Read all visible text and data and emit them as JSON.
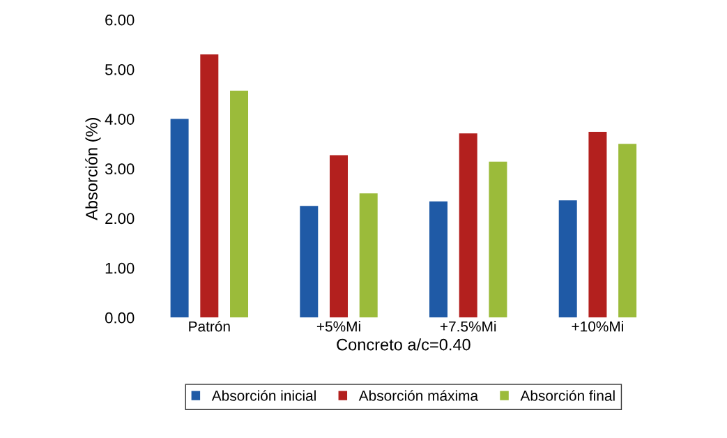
{
  "chart_data": {
    "type": "bar",
    "xlabel": "Concreto a/c=0.40",
    "ylabel": "Absorción (%)",
    "categories": [
      "Patrón",
      "+5%Mi",
      "+7.5%Mi",
      "+10%Mi"
    ],
    "series": [
      {
        "name": "Absorción inicial",
        "color": "#1f5aa6",
        "values": [
          4.0,
          2.25,
          2.34,
          2.36
        ]
      },
      {
        "name": "Absorción máxima",
        "color": "#b3201e",
        "values": [
          5.3,
          3.27,
          3.71,
          3.74
        ]
      },
      {
        "name": "Absorción final",
        "color": "#9bbb3a",
        "values": [
          4.57,
          2.5,
          3.14,
          3.5
        ]
      }
    ],
    "ylim": [
      0,
      6
    ],
    "yticks": [
      {
        "value": 0,
        "label": "0.00"
      },
      {
        "value": 1,
        "label": "1.00"
      },
      {
        "value": 2,
        "label": "2.00"
      },
      {
        "value": 3,
        "label": "3.00"
      },
      {
        "value": 4,
        "label": "4.00"
      },
      {
        "value": 5,
        "label": "5.00"
      },
      {
        "value": 6,
        "label": "6.00"
      }
    ],
    "grid": false,
    "legend": "bottom"
  }
}
